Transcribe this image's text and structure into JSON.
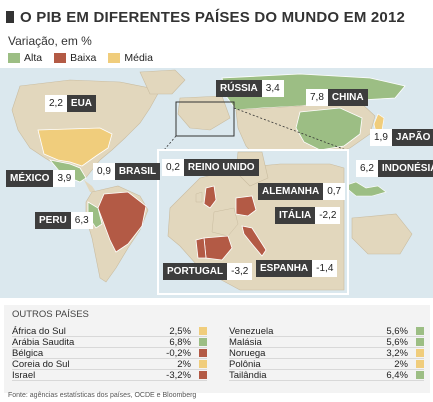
{
  "title": "O PIB EM DIFERENTES PAÍSES DO MUNDO EM 2012",
  "subtitle": "Variação, em %",
  "legend": {
    "alta": "Alta",
    "baixa": "Baixa",
    "media": "Média"
  },
  "colors": {
    "alta": "#9cbe84",
    "baixa": "#b35a45",
    "media": "#f0cd7c",
    "land": "#e2d7bd",
    "water": "#dbe8ee",
    "label_bg": "#3d3d3d"
  },
  "map_labels": {
    "russia": {
      "name": "RÚSSIA",
      "value": "3,4"
    },
    "eua": {
      "name": "EUA",
      "value": "2,2"
    },
    "china": {
      "name": "CHINA",
      "value": "7,8"
    },
    "japao": {
      "name": "JAPÃO",
      "value": "1,9"
    },
    "mexico": {
      "name": "MÉXICO",
      "value": "3,9"
    },
    "brasil": {
      "name": "BRASIL",
      "value": "0,9"
    },
    "reino_unido": {
      "name": "REINO UNIDO",
      "value": "0,2"
    },
    "indonesia": {
      "name": "INDONÉSIA",
      "value": "6,2"
    },
    "alemanha": {
      "name": "ALEMANHA",
      "value": "0,7"
    },
    "peru": {
      "name": "PERU",
      "value": "6,3"
    },
    "italia": {
      "name": "ITÁLIA",
      "value": "-2,2"
    },
    "portugal": {
      "name": "PORTUGAL",
      "value": "-3,2"
    },
    "espanha": {
      "name": "ESPANHA",
      "value": "-1,4"
    }
  },
  "outros": {
    "header": "OUTROS PAÍSES",
    "left": [
      {
        "name": "África do Sul",
        "value": "2,5%",
        "class": "media"
      },
      {
        "name": "Arábia Saudita",
        "value": "6,8%",
        "class": "alta"
      },
      {
        "name": "Bélgica",
        "value": "-0,2%",
        "class": "baixa"
      },
      {
        "name": "Coreia do Sul",
        "value": "2%",
        "class": "media"
      },
      {
        "name": "Israel",
        "value": "-3,2%",
        "class": "baixa"
      }
    ],
    "right": [
      {
        "name": "Venezuela",
        "value": "5,6%",
        "class": "alta"
      },
      {
        "name": "Malásia",
        "value": "5,6%",
        "class": "alta"
      },
      {
        "name": "Noruega",
        "value": "3,2%",
        "class": "media"
      },
      {
        "name": "Polônia",
        "value": "2%",
        "class": "media"
      },
      {
        "name": "Tailândia",
        "value": "6,4%",
        "class": "alta"
      }
    ]
  },
  "source": "Fonte: agências estatísticas dos países, OCDE e Bloomberg"
}
